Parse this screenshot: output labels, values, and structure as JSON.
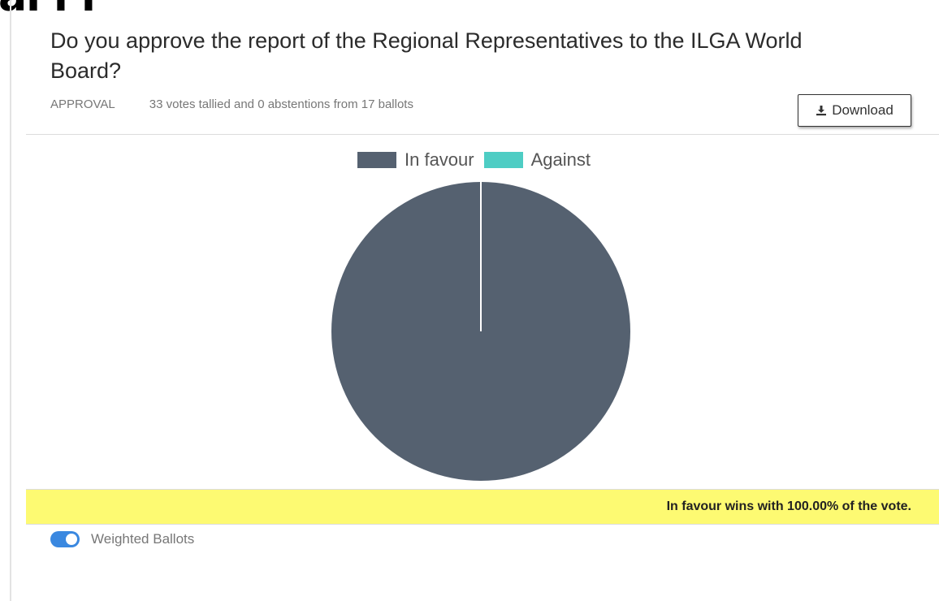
{
  "page": {
    "top_fragment": "aı ı ı"
  },
  "question": {
    "title": "Do you approve the report of the Regional Representatives to the ILGA World Board?",
    "type": "APPROVAL",
    "tally_summary": "33 votes tallied and 0 abstentions from 17 ballots"
  },
  "toolbar": {
    "download_label": "Download",
    "download_icon": "download-icon"
  },
  "chart_data": {
    "type": "pie",
    "labels": [
      "In favour",
      "Against"
    ],
    "values": [
      100,
      0
    ],
    "colors": [
      "#556170",
      "#4ecdc4"
    ],
    "legend_position": "top"
  },
  "result": {
    "text": "In favour wins with 100.00% of the vote."
  },
  "weighted": {
    "label": "Weighted Ballots",
    "enabled": true,
    "toggle_color": "#3a88e0"
  }
}
